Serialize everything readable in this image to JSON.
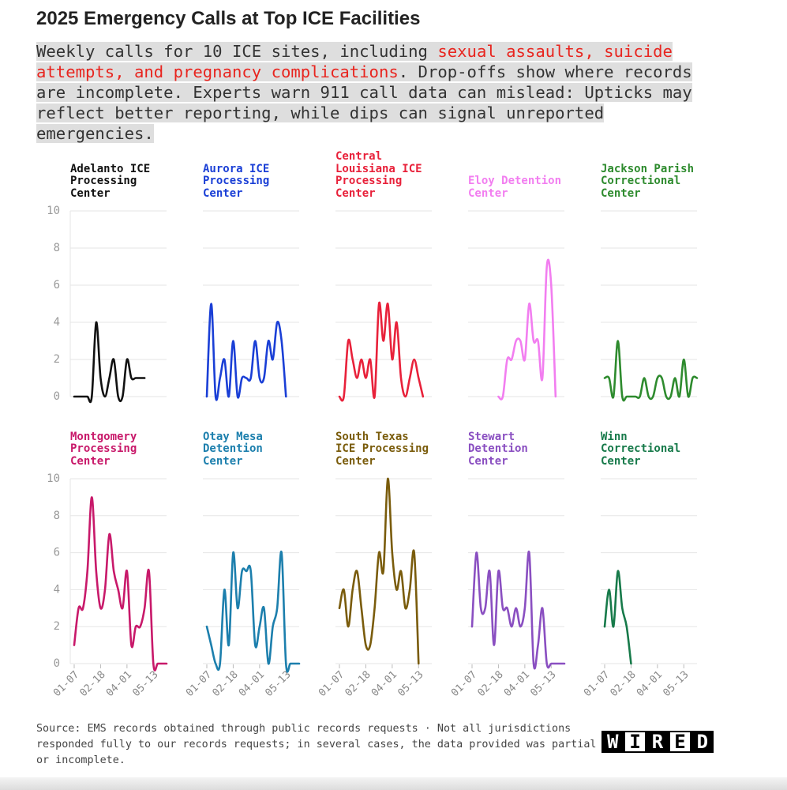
{
  "title": "2025 Emergency Calls at Top ICE Facilities",
  "subtitle": [
    "Weekly calls for 10 ICE sites, including ",
    "sexual assaults, suicide attempts, and pregnancy complications",
    ". Drop-offs show where records are incomplete. Experts warn 911 call data can mislead: Upticks may reflect better reporting, while dips can signal unreported emergencies."
  ],
  "subtitle_emphasis_color": "#e8251f",
  "source": "Source: EMS records obtained through public records requests · Not all jurisdictions responded fully to our records requests; in several cases, the data provided was partial or incomplete.",
  "logo": "WIRED",
  "chart_data": [
    {
      "type": "line",
      "title": "Adelanto ICE Processing Center",
      "color": "#111111",
      "x": [
        "01-07",
        "01-14",
        "01-21",
        "01-28",
        "02-04",
        "02-11",
        "02-18",
        "02-25",
        "03-04",
        "03-11",
        "03-18",
        "03-25",
        "04-01",
        "04-08",
        "04-15",
        "04-22",
        "04-29",
        "05-06",
        "05-13",
        "05-20",
        "05-27",
        "06-03"
      ],
      "values": [
        0,
        0,
        0,
        0,
        0,
        4,
        1,
        0,
        1,
        2,
        0,
        0,
        2,
        1,
        1,
        1,
        1,
        null,
        null,
        null,
        null,
        null
      ],
      "ylim": [
        0,
        10
      ],
      "yticks": [
        0,
        2,
        4,
        6,
        8,
        10
      ],
      "grid": true
    },
    {
      "type": "line",
      "title": "Aurora ICE Processing Center",
      "color": "#1a3fd6",
      "x": [
        "01-07",
        "01-14",
        "01-21",
        "01-28",
        "02-04",
        "02-11",
        "02-18",
        "02-25",
        "03-04",
        "03-11",
        "03-18",
        "03-25",
        "04-01",
        "04-08",
        "04-15",
        "04-22",
        "04-29",
        "05-06",
        "05-13",
        "05-20",
        "05-27",
        "06-03"
      ],
      "values": [
        0,
        5,
        0,
        1,
        2,
        0,
        3,
        0,
        1,
        1,
        1,
        3,
        1,
        1,
        3,
        2,
        4,
        3,
        0,
        null,
        null,
        null
      ],
      "ylim": [
        0,
        10
      ],
      "yticks": [
        0,
        2,
        4,
        6,
        8,
        10
      ],
      "grid": true
    },
    {
      "type": "line",
      "title": "Central Louisiana ICE Processing Center",
      "color": "#e8213a",
      "x": [
        "01-07",
        "01-14",
        "01-21",
        "01-28",
        "02-04",
        "02-11",
        "02-18",
        "02-25",
        "03-04",
        "03-11",
        "03-18",
        "03-25",
        "04-01",
        "04-08",
        "04-15",
        "04-22",
        "04-29",
        "05-06",
        "05-13",
        "05-20",
        "05-27",
        "06-03"
      ],
      "values": [
        0,
        0,
        3,
        2,
        1,
        2,
        1,
        2,
        0,
        5,
        3,
        5,
        2,
        4,
        1,
        0,
        1,
        2,
        1,
        0,
        null,
        null
      ],
      "ylim": [
        0,
        10
      ],
      "yticks": [
        0,
        2,
        4,
        6,
        8,
        10
      ],
      "grid": true
    },
    {
      "type": "line",
      "title": "Eloy Detention Center",
      "color": "#f27ef0",
      "x": [
        "01-07",
        "01-14",
        "01-21",
        "01-28",
        "02-04",
        "02-11",
        "02-18",
        "02-25",
        "03-04",
        "03-11",
        "03-18",
        "03-25",
        "04-01",
        "04-08",
        "04-15",
        "04-22",
        "04-29",
        "05-06",
        "05-13",
        "05-20",
        "05-27",
        "06-03"
      ],
      "values": [
        null,
        null,
        null,
        null,
        null,
        null,
        0,
        0,
        2,
        2,
        3,
        3,
        2,
        5,
        3,
        3,
        1,
        7,
        6,
        0,
        null,
        null
      ],
      "ylim": [
        0,
        10
      ],
      "yticks": [
        0,
        2,
        4,
        6,
        8,
        10
      ],
      "grid": true
    },
    {
      "type": "line",
      "title": "Jackson Parish Correctional Center",
      "color": "#2e8b2e",
      "x": [
        "01-07",
        "01-14",
        "01-21",
        "01-28",
        "02-04",
        "02-11",
        "02-18",
        "02-25",
        "03-04",
        "03-11",
        "03-18",
        "03-25",
        "04-01",
        "04-08",
        "04-15",
        "04-22",
        "04-29",
        "05-06",
        "05-13",
        "05-20",
        "05-27",
        "06-03"
      ],
      "values": [
        1,
        1,
        0,
        3,
        0,
        0,
        0,
        0,
        0,
        1,
        0,
        0,
        1,
        1,
        0,
        0,
        1,
        0,
        2,
        0,
        1,
        1
      ],
      "ylim": [
        0,
        10
      ],
      "yticks": [
        0,
        2,
        4,
        6,
        8,
        10
      ],
      "grid": true
    },
    {
      "type": "line",
      "title": "Montgomery Processing Center",
      "color": "#c8196a",
      "x": [
        "01-07",
        "01-14",
        "01-21",
        "01-28",
        "02-04",
        "02-11",
        "02-18",
        "02-25",
        "03-04",
        "03-11",
        "03-18",
        "03-25",
        "04-01",
        "04-08",
        "04-15",
        "04-22",
        "04-29",
        "05-06",
        "05-13",
        "05-20",
        "05-27",
        "06-03"
      ],
      "values": [
        1,
        3,
        3,
        5,
        9,
        5,
        3,
        4,
        7,
        5,
        4,
        3,
        5,
        1,
        2,
        2,
        3,
        5,
        0,
        0,
        0,
        0
      ],
      "ylim": [
        0,
        10
      ],
      "yticks": [
        0,
        2,
        4,
        6,
        8,
        10
      ],
      "xticks": [
        "01-07",
        "02-18",
        "04-01",
        "05-13"
      ],
      "grid": true
    },
    {
      "type": "line",
      "title": "Otay Mesa Detention Center",
      "color": "#1c7fad",
      "x": [
        "01-07",
        "01-14",
        "01-21",
        "01-28",
        "02-04",
        "02-11",
        "02-18",
        "02-25",
        "03-04",
        "03-11",
        "03-18",
        "03-25",
        "04-01",
        "04-08",
        "04-15",
        "04-22",
        "04-29",
        "05-06",
        "05-13",
        "05-20",
        "05-27",
        "06-03"
      ],
      "values": [
        2,
        1,
        0,
        0,
        4,
        1,
        6,
        3,
        5,
        5,
        5,
        1,
        2,
        3,
        0,
        2,
        3,
        6,
        0,
        0,
        0,
        0
      ],
      "ylim": [
        0,
        10
      ],
      "yticks": [
        0,
        2,
        4,
        6,
        8,
        10
      ],
      "xticks": [
        "01-07",
        "02-18",
        "04-01",
        "05-13"
      ],
      "grid": true
    },
    {
      "type": "line",
      "title": "South Texas ICE Processing Center",
      "color": "#7a5c0c",
      "x": [
        "01-07",
        "01-14",
        "01-21",
        "01-28",
        "02-04",
        "02-11",
        "02-18",
        "02-25",
        "03-04",
        "03-11",
        "03-18",
        "03-25",
        "04-01",
        "04-08",
        "04-15",
        "04-22",
        "04-29",
        "05-06",
        "05-13",
        "05-20",
        "05-27",
        "06-03"
      ],
      "values": [
        3,
        4,
        2,
        4,
        5,
        3,
        1,
        1,
        3,
        6,
        5,
        10,
        6,
        4,
        5,
        3,
        4,
        6,
        0,
        null,
        null,
        null
      ],
      "ylim": [
        0,
        10
      ],
      "yticks": [
        0,
        2,
        4,
        6,
        8,
        10
      ],
      "xticks": [
        "01-07",
        "02-18",
        "04-01",
        "05-13"
      ],
      "grid": true
    },
    {
      "type": "line",
      "title": "Stewart Detention Center",
      "color": "#8a4fc1",
      "x": [
        "01-07",
        "01-14",
        "01-21",
        "01-28",
        "02-04",
        "02-11",
        "02-18",
        "02-25",
        "03-04",
        "03-11",
        "03-18",
        "03-25",
        "04-01",
        "04-08",
        "04-15",
        "04-22",
        "04-29",
        "05-06",
        "05-13",
        "05-20",
        "05-27",
        "06-03"
      ],
      "values": [
        2,
        6,
        3,
        3,
        5,
        1,
        5,
        3,
        3,
        2,
        3,
        2,
        3,
        6,
        0,
        1,
        3,
        0,
        0,
        0,
        0,
        0
      ],
      "ylim": [
        0,
        10
      ],
      "yticks": [
        0,
        2,
        4,
        6,
        8,
        10
      ],
      "xticks": [
        "01-07",
        "02-18",
        "04-01",
        "05-13"
      ],
      "grid": true
    },
    {
      "type": "line",
      "title": "Winn Correctional Center",
      "color": "#177a4a",
      "x": [
        "01-07",
        "01-14",
        "01-21",
        "01-28",
        "02-04",
        "02-11",
        "02-18",
        "02-25",
        "03-04",
        "03-11",
        "03-18",
        "03-25",
        "04-01",
        "04-08",
        "04-15",
        "04-22",
        "04-29",
        "05-06",
        "05-13",
        "05-20",
        "05-27",
        "06-03"
      ],
      "values": [
        2,
        4,
        2,
        5,
        3,
        2,
        0,
        null,
        null,
        null,
        null,
        null,
        null,
        null,
        null,
        null,
        null,
        null,
        null,
        null,
        null,
        null
      ],
      "ylim": [
        0,
        10
      ],
      "yticks": [
        0,
        2,
        4,
        6,
        8,
        10
      ],
      "xticks": [
        "01-07",
        "02-18",
        "04-01",
        "05-13"
      ],
      "grid": true
    }
  ]
}
